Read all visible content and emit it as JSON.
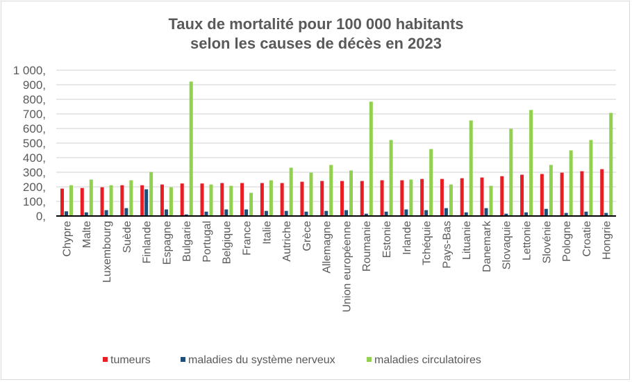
{
  "chart_data": {
    "type": "bar",
    "title": "Taux de mortalité pour 100 000 habitants",
    "subtitle": "selon les causes de décès en 2023",
    "xlabel": "",
    "ylabel": "",
    "ylim": [
      0,
      1000
    ],
    "yticks": [
      0,
      100,
      200,
      300,
      400,
      500,
      600,
      700,
      800,
      900,
      1000
    ],
    "ytick_labels": [
      "0,",
      "100,",
      "200,",
      "300,",
      "400,",
      "500,",
      "600,",
      "700,",
      "800,",
      "900,",
      "1 000,"
    ],
    "grid": true,
    "legend_position": "bottom",
    "categories": [
      "Chypre",
      "Malte",
      "Luxembourg",
      "Suède",
      "Finlande",
      "Espagne",
      "Bulgarie",
      "Portugal",
      "Belgique",
      "France",
      "Italie",
      "Autriche",
      "Grèce",
      "Allemagne",
      "Union européenne",
      "Roumanie",
      "Estonie",
      "Irlande",
      "Tchéquie",
      "Pays-Bas",
      "Lituanie",
      "Danemark",
      "Slovaquie",
      "Lettonie",
      "Slovénie",
      "Pologne",
      "Croatie",
      "Hongrie"
    ],
    "series": [
      {
        "name": "tumeurs",
        "color": "#e81e25",
        "values": [
          188,
          192,
          197,
          211,
          211,
          216,
          223,
          223,
          226,
          226,
          226,
          226,
          235,
          240,
          240,
          240,
          245,
          245,
          254,
          254,
          259,
          264,
          273,
          283,
          288,
          297,
          307,
          321
        ]
      },
      {
        "name": "maladies du système nerveux",
        "color": "#1f4e79",
        "values": [
          32,
          25,
          40,
          54,
          183,
          45,
          11,
          30,
          45,
          45,
          35,
          35,
          30,
          35,
          40,
          16,
          30,
          45,
          40,
          54,
          25,
          54,
          16,
          25,
          49,
          21,
          30,
          21
        ]
      },
      {
        "name": "maladies circulatoires",
        "color": "#92d050",
        "values": [
          211,
          250,
          211,
          245,
          302,
          197,
          922,
          216,
          207,
          159,
          245,
          331,
          297,
          350,
          312,
          784,
          521,
          250,
          459,
          216,
          655,
          207,
          598,
          727,
          350,
          450,
          521,
          707
        ]
      }
    ]
  }
}
